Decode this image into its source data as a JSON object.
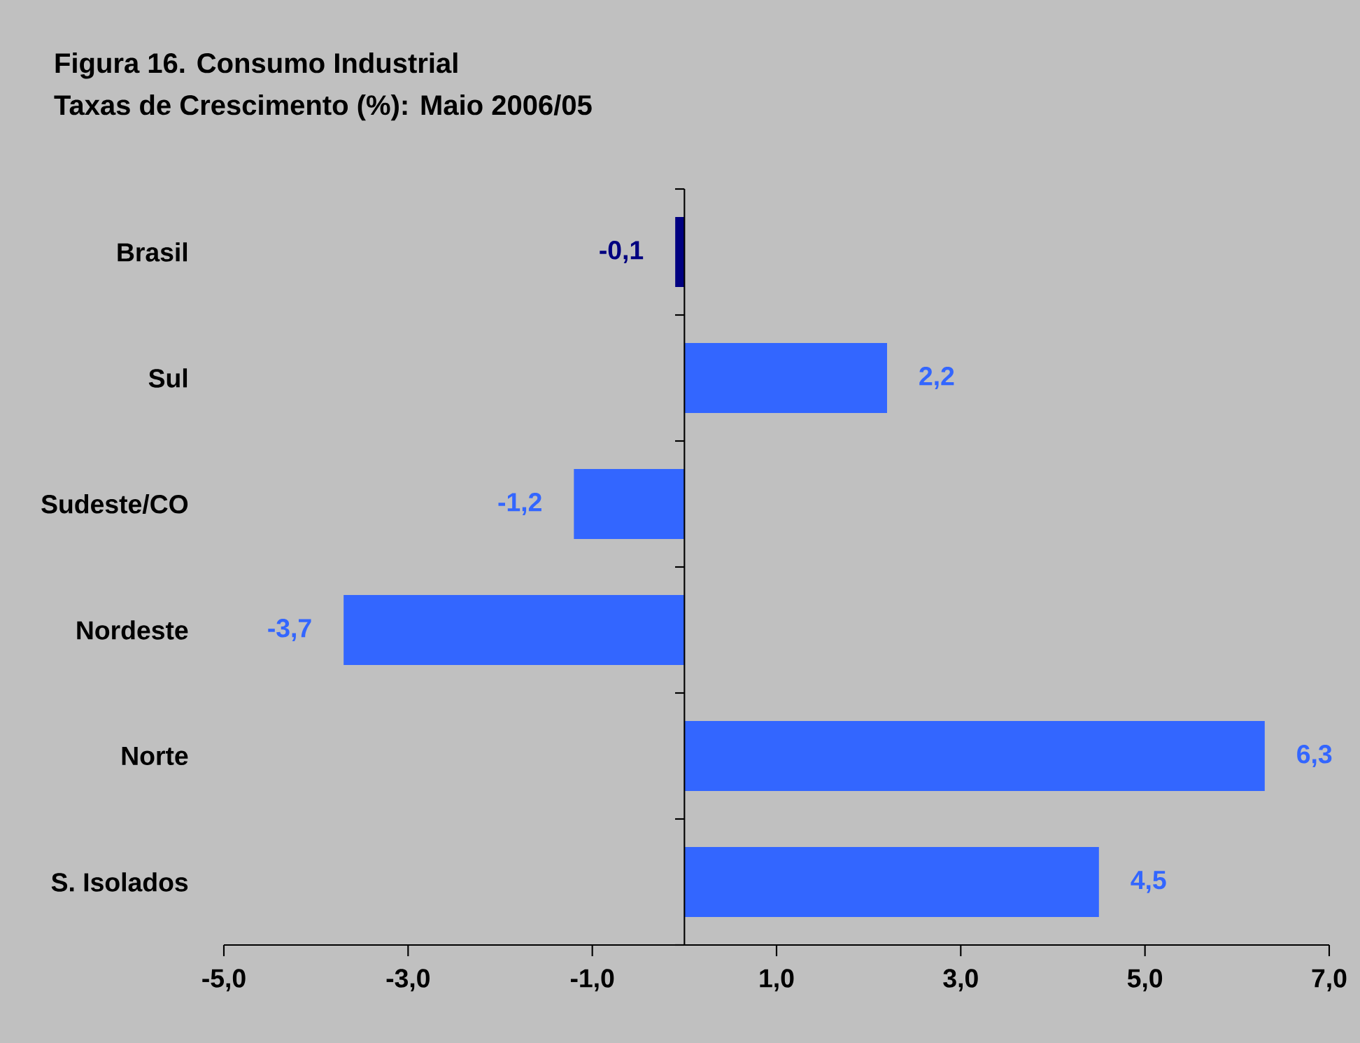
{
  "chart_data": {
    "type": "bar",
    "orientation": "horizontal",
    "title": "Figura 16. Consumo Industrial",
    "subtitle": "Taxas de Crescimento (%): Maio 2006/05",
    "categories": [
      "Brasil",
      "Sul",
      "Sudeste/CO",
      "Nordeste",
      "Norte",
      "S. Isolados"
    ],
    "values": [
      -0.1,
      2.2,
      -1.2,
      -3.7,
      6.3,
      4.5
    ],
    "value_labels": [
      "-0,1",
      "2,2",
      "-1,2",
      "-3,7",
      "6,3",
      "4,5"
    ],
    "colors": [
      "#000080",
      "#3366ff",
      "#3366ff",
      "#3366ff",
      "#3366ff",
      "#3366ff"
    ],
    "xlim": [
      -5,
      7
    ],
    "xticks": [
      {
        "value": -5,
        "label": "-5,0"
      },
      {
        "value": -3,
        "label": "-3,0"
      },
      {
        "value": -1,
        "label": "-1,0"
      },
      {
        "value": 1,
        "label": "1,0"
      },
      {
        "value": 3,
        "label": "3,0"
      },
      {
        "value": 5,
        "label": "5,0"
      },
      {
        "value": 7,
        "label": "7,0"
      }
    ]
  }
}
